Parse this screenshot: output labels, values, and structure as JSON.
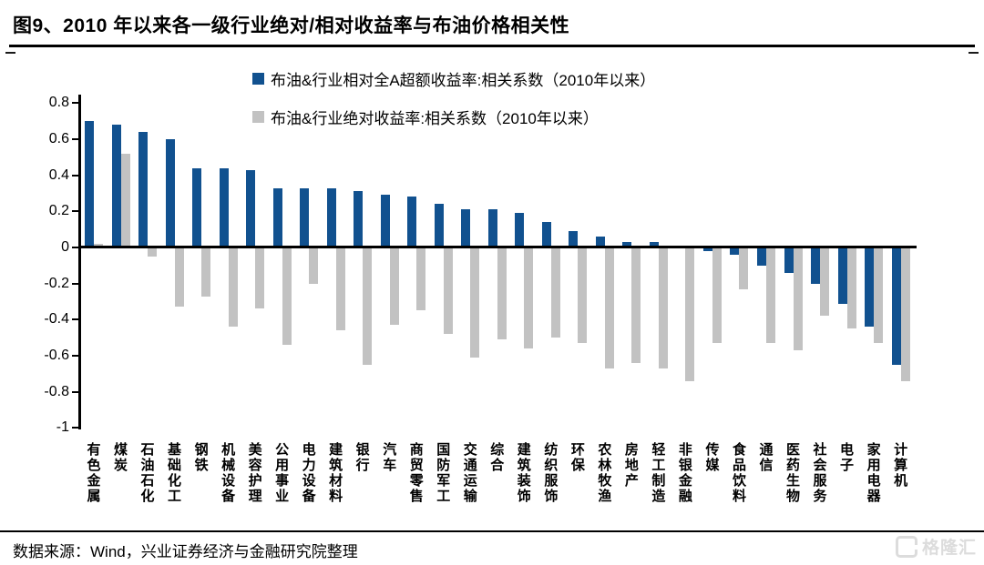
{
  "header": {
    "title": "图9、2010 年以来各一级行业绝对/相对收益率与布油价格相关性"
  },
  "legend": [
    {
      "label": "布油&行业相对全A超额收益率:相关系数（2010年以来）",
      "color": "#11518F"
    },
    {
      "label": "布油&行业绝对收益率:相关系数（2010年以来）",
      "color": "#C2C2C2"
    }
  ],
  "chart_data": {
    "type": "bar",
    "title": "图9、2010 年以来各一级行业绝对/相对收益率与布油价格相关性",
    "categories": [
      "有色金属",
      "煤炭",
      "石油石化",
      "基础化工",
      "钢铁",
      "机械设备",
      "美容护理",
      "公用事业",
      "电力设备",
      "建筑材料",
      "银行",
      "汽车",
      "商贸零售",
      "国防军工",
      "交通运输",
      "综合",
      "建筑装饰",
      "纺织服饰",
      "环保",
      "农林牧渔",
      "房地产",
      "轻工制造",
      "非银金融",
      "传媒",
      "食品饮料",
      "通信",
      "医药生物",
      "社会服务",
      "电子",
      "家用电器",
      "计算机"
    ],
    "series": [
      {
        "name": "布油&行业相对全A超额收益率:相关系数（2010年以来）",
        "color": "#11518F",
        "values": [
          0.7,
          0.68,
          0.64,
          0.6,
          0.44,
          0.44,
          0.43,
          0.33,
          0.33,
          0.33,
          0.31,
          0.29,
          0.28,
          0.24,
          0.21,
          0.21,
          0.19,
          0.14,
          0.09,
          0.06,
          0.03,
          0.03,
          0.0,
          -0.02,
          -0.04,
          -0.1,
          -0.14,
          -0.2,
          -0.31,
          -0.44,
          -0.65
        ]
      },
      {
        "name": "布油&行业绝对收益率:相关系数（2010年以来）",
        "color": "#C2C2C2",
        "values": [
          0.02,
          0.52,
          -0.05,
          -0.33,
          -0.27,
          -0.44,
          -0.34,
          -0.54,
          -0.2,
          -0.46,
          -0.65,
          -0.43,
          -0.35,
          -0.48,
          -0.61,
          -0.51,
          -0.56,
          -0.5,
          -0.53,
          -0.67,
          -0.64,
          -0.67,
          -0.74,
          -0.53,
          -0.23,
          -0.53,
          -0.57,
          -0.38,
          -0.45,
          -0.53,
          -0.74
        ]
      }
    ],
    "xlabel": "",
    "ylabel": "",
    "ylim": [
      -1,
      0.8
    ],
    "yticks": [
      "0.8",
      "0.6",
      "0.4",
      "0.2",
      "0",
      "-0.2",
      "-0.4",
      "-0.6",
      "-0.8",
      "-1"
    ],
    "grid": false,
    "legend_position": "top-center"
  },
  "footer": {
    "source": "数据来源：Wind，兴业证券经济与金融研究院整理",
    "watermark": "格隆汇"
  }
}
